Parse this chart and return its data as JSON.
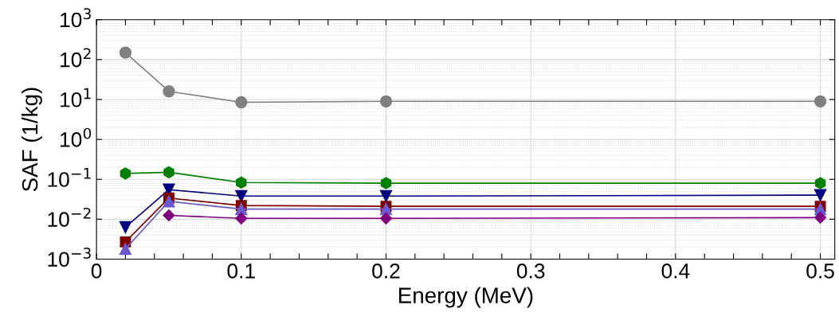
{
  "chart_data": {
    "type": "line",
    "xlabel": "Energy (MeV)",
    "ylabel": "SAF (1/kg)",
    "log": "y",
    "grid": true,
    "legend": false,
    "x": [
      0.02,
      0.05,
      0.1,
      0.2,
      0.5
    ],
    "xlim": [
      0,
      0.51
    ],
    "xticks": [
      0,
      {
        "value": 0.02,
        "label": null
      },
      {
        "value": 0.04,
        "label": null
      },
      {
        "value": 0.06,
        "label": null
      },
      {
        "value": 0.08,
        "label": null
      },
      0.1,
      {
        "value": 0.12,
        "label": null
      },
      {
        "value": 0.14,
        "label": null
      },
      {
        "value": 0.16,
        "label": null
      },
      {
        "value": 0.18,
        "label": null
      },
      0.2,
      {
        "value": 0.22,
        "label": null
      },
      {
        "value": 0.24,
        "label": null
      },
      {
        "value": 0.26,
        "label": null
      },
      {
        "value": 0.28,
        "label": null
      },
      0.3,
      {
        "value": 0.32,
        "label": null
      },
      {
        "value": 0.34,
        "label": null
      },
      {
        "value": 0.36,
        "label": null
      },
      {
        "value": 0.38,
        "label": null
      },
      0.4,
      {
        "value": 0.42,
        "label": null
      },
      {
        "value": 0.44,
        "label": null
      },
      {
        "value": 0.46,
        "label": null
      },
      {
        "value": 0.48,
        "label": null
      },
      0.5
    ],
    "ylim": [
      0.001,
      1000
    ],
    "yticks": [
      {
        "value": 0.001,
        "label": "10$^{−3}$"
      },
      {
        "value": 0.01,
        "label": "10$^{−2}$"
      },
      {
        "value": 0.1,
        "label": "10$^{−1}$"
      },
      {
        "value": 1,
        "label": "10$^{0}$"
      },
      {
        "value": 10,
        "label": "10$^{1}$"
      },
      {
        "value": 100,
        "label": "10$^{2}$"
      },
      {
        "value": 1000,
        "label": "10$^{3}$"
      }
    ],
    "series": [
      {
        "color": "#808080",
        "marker": "circle",
        "values": [
          150,
          16,
          8.5,
          9,
          9
        ]
      },
      {
        "color": "#008000",
        "marker": "star",
        "values": [
          0.14,
          0.15,
          0.083,
          0.08,
          0.08
        ]
      },
      {
        "color": "#000080",
        "marker": "triangle_down",
        "values": [
          0.0063,
          0.055,
          0.038,
          0.038,
          0.04
        ]
      },
      {
        "color": "#800000",
        "marker": "square",
        "values": [
          0.0027,
          0.034,
          0.022,
          0.021,
          0.021
        ]
      },
      {
        "color": "#6a5acd",
        "marker": "triangle",
        "values": [
          0.0018,
          0.028,
          0.018,
          0.018,
          0.018
        ]
      },
      {
        "color": "#800080",
        "marker": "diamond",
        "values": [
          null,
          0.0125,
          0.0105,
          0.0105,
          0.011
        ]
      }
    ]
  }
}
